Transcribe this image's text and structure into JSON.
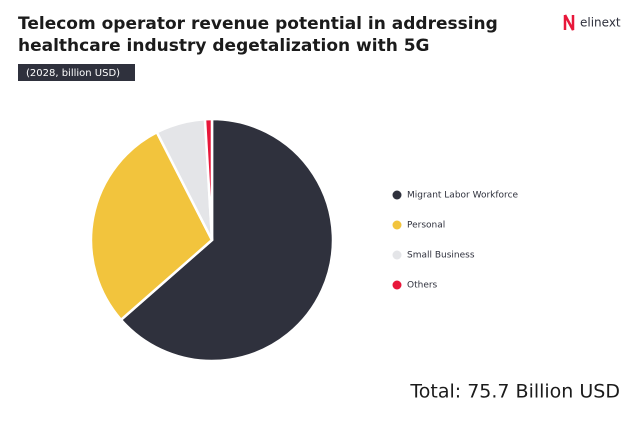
{
  "brand": "elinext",
  "chart_data": {
    "type": "pie",
    "title": [
      "Telecom operator revenue potential in addressing",
      "healthcare industry degetalization with 5G"
    ],
    "subtitle": "(2028, billion USD)",
    "categories": [
      "Migrant Labor Workforce",
      "Personal",
      "Small Business",
      "Others"
    ],
    "values": [
      48.1,
      21.9,
      5.0,
      0.7
    ],
    "colors": [
      "#2f313d",
      "#f2c43d",
      "#e4e5e8",
      "#e8173a"
    ],
    "legend": "right",
    "annotation": "Total: 75.7 Billion USD"
  }
}
